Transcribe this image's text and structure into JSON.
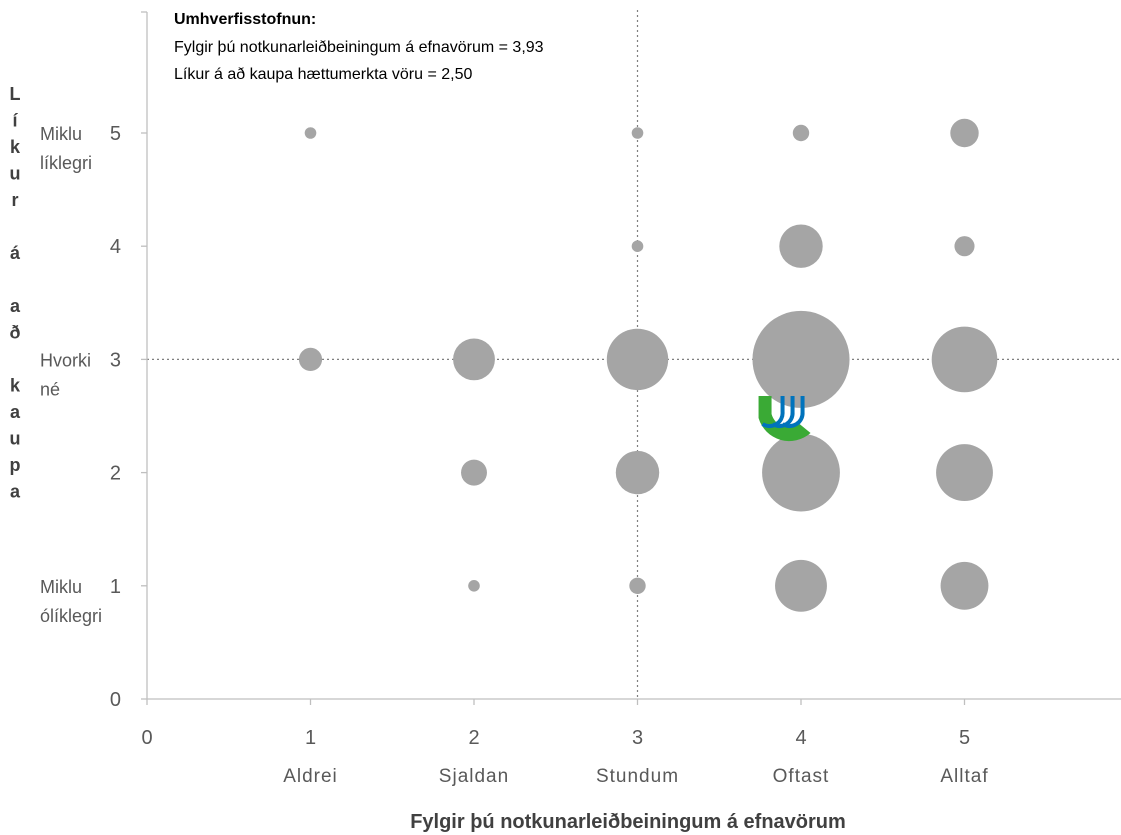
{
  "chart_data": {
    "type": "scatter",
    "xlabel": "Fylgir þú notkunarleiðbeiningum á efnavörum",
    "ylabel": "Líkur á að kaupa",
    "xlim": [
      0,
      5.9
    ],
    "ylim": [
      0,
      6
    ],
    "x_ticks": [
      "0",
      "1",
      "2",
      "3",
      "4",
      "5"
    ],
    "y_ticks": [
      "0",
      "1",
      "2",
      "3",
      "4",
      "5"
    ],
    "x_category_labels": [
      "Aldrei",
      "Sjaldan",
      "Stundum",
      "Oftast",
      "Alltaf"
    ],
    "y_category_labels": [
      {
        "y": 5,
        "lines": [
          "Miklu",
          "líklegri"
        ]
      },
      {
        "y": 3,
        "lines": [
          "Hvorki",
          "né"
        ]
      },
      {
        "y": 1,
        "lines": [
          "Miklu",
          "ólíklegri"
        ]
      }
    ],
    "annotation": {
      "title": "Umhverfisstofnun:",
      "lines": [
        "Fylgir þú notkunarleiðbeiningum á efnavörum = 3,93",
        "Líkur á að kaupa hættumerkta vöru = 2,50"
      ]
    },
    "reference_lines": {
      "x": 3,
      "y": 3
    },
    "grid": false,
    "marker_color": "#a5a5a5",
    "points": [
      {
        "x": 1,
        "y": 5,
        "size": 1
      },
      {
        "x": 3,
        "y": 5,
        "size": 1
      },
      {
        "x": 4,
        "y": 5,
        "size": 2
      },
      {
        "x": 5,
        "y": 5,
        "size": 6
      },
      {
        "x": 3,
        "y": 4,
        "size": 1
      },
      {
        "x": 4,
        "y": 4,
        "size": 14
      },
      {
        "x": 5,
        "y": 4,
        "size": 3
      },
      {
        "x": 1,
        "y": 3,
        "size": 4
      },
      {
        "x": 2,
        "y": 3,
        "size": 13
      },
      {
        "x": 3,
        "y": 3,
        "size": 28
      },
      {
        "x": 4,
        "y": 3,
        "size": 70
      },
      {
        "x": 5,
        "y": 3,
        "size": 32
      },
      {
        "x": 2,
        "y": 2,
        "size": 5
      },
      {
        "x": 3,
        "y": 2,
        "size": 14
      },
      {
        "x": 4,
        "y": 2,
        "size": 45
      },
      {
        "x": 5,
        "y": 2,
        "size": 24
      },
      {
        "x": 2,
        "y": 1,
        "size": 1
      },
      {
        "x": 3,
        "y": 1,
        "size": 2
      },
      {
        "x": 4,
        "y": 1,
        "size": 20
      },
      {
        "x": 5,
        "y": 1,
        "size": 17
      }
    ],
    "highlight_marker": {
      "x": 3.93,
      "y": 2.5,
      "icon": "umhverfisstofnun-logo-icon",
      "colors": [
        "#3aaa35",
        "#0073bc"
      ]
    }
  }
}
